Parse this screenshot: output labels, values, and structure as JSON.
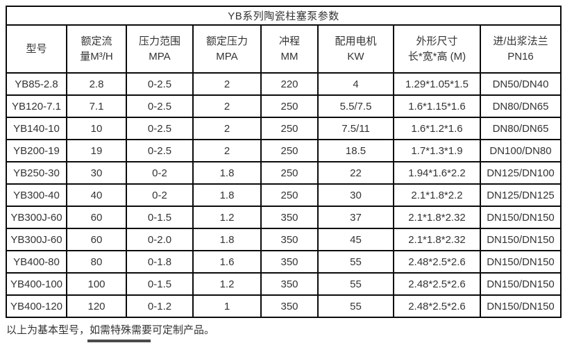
{
  "title": "YB系列陶瓷柱塞泵参数",
  "columns": [
    {
      "line1": "型号",
      "line2": ""
    },
    {
      "line1": "额定流",
      "line2": "量M³/H"
    },
    {
      "line1": "压力范围",
      "line2": "MPA"
    },
    {
      "line1": "额定压力",
      "line2": "MPA"
    },
    {
      "line1": "冲程",
      "line2": "MM"
    },
    {
      "line1": "配用电机",
      "line2": "KW"
    },
    {
      "line1": "外形尺寸",
      "line2": "长*宽*高 (M)"
    },
    {
      "line1": "进/出浆法兰",
      "line2": "PN16"
    }
  ],
  "rows": [
    [
      "YB85-2.8",
      "2.8",
      "0-2.5",
      "2",
      "220",
      "4",
      "1.29*1.05*1.5",
      "DN50/DN40"
    ],
    [
      "YB120-7.1",
      "7.1",
      "0-2.5",
      "2",
      "250",
      "5.5/7.5",
      "1.6*1.15*1.6",
      "DN80/DN65"
    ],
    [
      "YB140-10",
      "10",
      "0-2.5",
      "2",
      "250",
      "7.5/11",
      "1.6*1.2*1.6",
      "DN80/DN65"
    ],
    [
      "YB200-19",
      "19",
      "0-2.5",
      "2",
      "250",
      "18.5",
      "1.7*1.3*1.9",
      "DN100/DN80"
    ],
    [
      "YB250-30",
      "30",
      "0-2",
      "1.8",
      "250",
      "22",
      "1.94*1.6*2.2",
      "DN125/DN100"
    ],
    [
      "YB300-40",
      "40",
      "0-2",
      "1.8",
      "250",
      "30",
      "2.1*1.8*2.2",
      "DN125/DN125"
    ],
    [
      "YB300J-60",
      "60",
      "0-1.5",
      "1.2",
      "350",
      "37",
      "2.1*1.8*2.32",
      "DN150/DN150"
    ],
    [
      "YB300J-60",
      "60",
      "0-2.0",
      "1.8",
      "350",
      "45",
      "2.1*1.8*2.32",
      "DN150/DN150"
    ],
    [
      "YB400-80",
      "80",
      "0-1.8",
      "1.6",
      "350",
      "55",
      "2.48*2.5*2.6",
      "DN150/DN150"
    ],
    [
      "YB400-100",
      "100",
      "0-1.5",
      "1.2",
      "350",
      "55",
      "2.48*2.5*2.6",
      "DN150/DN150"
    ],
    [
      "YB400-120",
      "120",
      "0-1.2",
      "1",
      "350",
      "55",
      "2.48*2.5*2.6",
      "DN150/DN150"
    ]
  ],
  "footer_note": "以上为基本型号，如需特殊需要可定制产品。",
  "colors": {
    "border": "#0a0a0a",
    "text": "#333333",
    "background": "#ffffff"
  }
}
